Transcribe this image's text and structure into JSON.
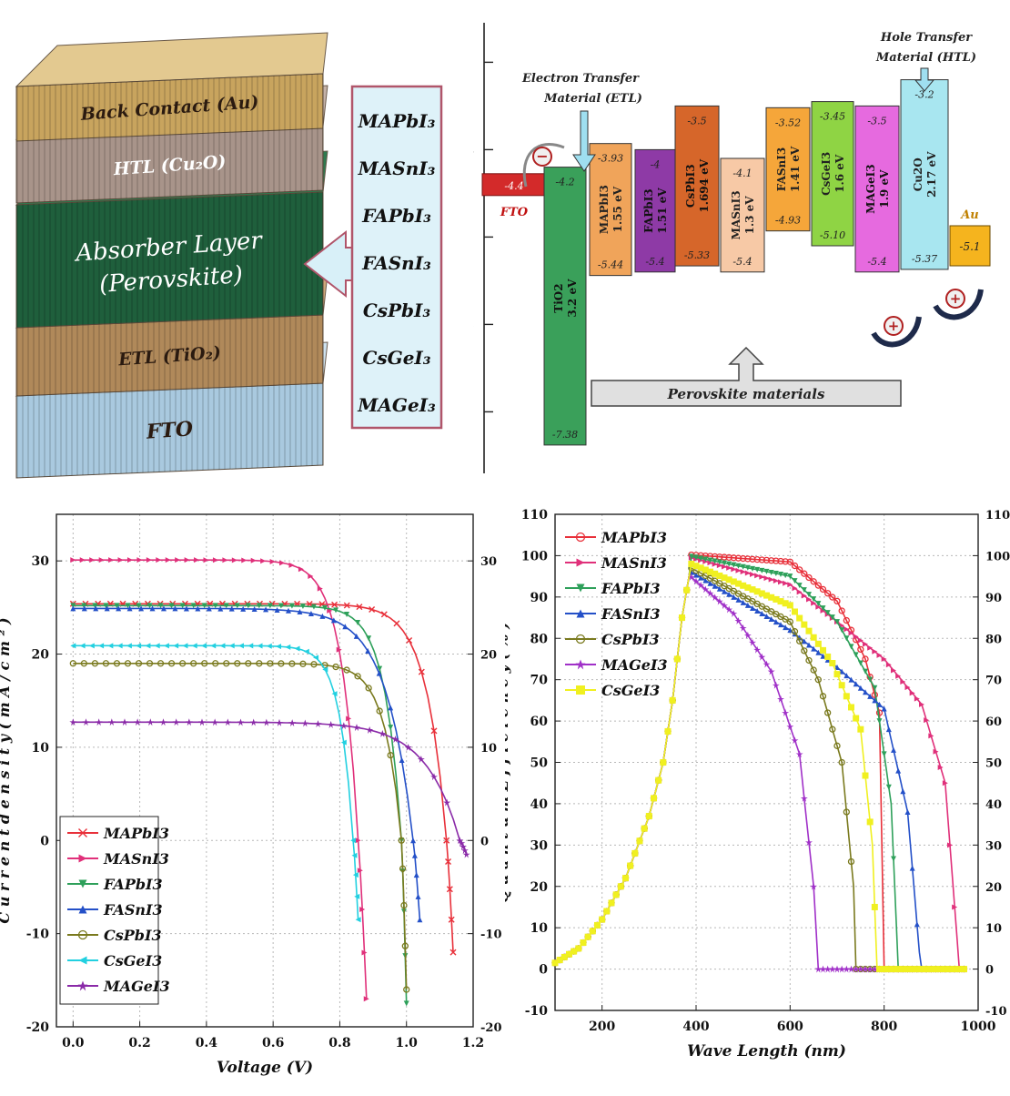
{
  "stack": {
    "layers": [
      {
        "label": "Back Contact (Au)",
        "color": "#c8a45e",
        "top_color": "#e3c990"
      },
      {
        "label": "HTL (Cu₂O)",
        "color": "#a8948a",
        "top_color": "#c4b2a8"
      },
      {
        "label": "Absorber Layer",
        "label2": "(Perovskite)",
        "color": "#1f5f3c",
        "top_color": "#2e7a4f"
      },
      {
        "label": "ETL (TiO₂)",
        "color": "#b0895a",
        "top_color": "#cfa87a"
      },
      {
        "label": "FTO",
        "color": "#a9c9df",
        "top_color": "#cde1ee"
      }
    ],
    "materials": [
      "MAPbI₃",
      "MASnI₃",
      "FAPbI₃",
      "FASnI₃",
      "CsPbI₃",
      "CsGeI₃",
      "MAGeI₃"
    ]
  },
  "band": {
    "yaxis_ticks": [
      "-3",
      "-4",
      "-5",
      "-6",
      "-7"
    ],
    "ymin": -7.6,
    "ymax": -2.6,
    "etl_label": [
      "Electron Transfer",
      "Material (ETL)"
    ],
    "htl_label": [
      "Hole Transfer",
      "Material (HTL)"
    ],
    "perovskite_label": "Perovskite materials",
    "fto": {
      "label": "FTO",
      "value_label": "-4.4",
      "value": -4.4,
      "color": "#d32a2a"
    },
    "au": {
      "label": "Au",
      "value_label": "-5.1",
      "value": -5.1,
      "color": "#f5b41e"
    },
    "electron_sign": "−",
    "hole_sign": "+",
    "blocks": [
      {
        "name": "TiO2",
        "gap": "3.2 eV",
        "top": -4.2,
        "bottom": -7.38,
        "top_label": "-4.2",
        "bottom_label": "-7.38",
        "color": "#3aa05a"
      },
      {
        "name": "MAPbI3",
        "gap": "1.55 eV",
        "top": -3.93,
        "bottom": -5.44,
        "top_label": "-3.93",
        "bottom_label": "-5.44",
        "color": "#f0a45a"
      },
      {
        "name": "FAPbI3",
        "gap": "1.51 eV",
        "top": -4.0,
        "bottom": -5.4,
        "top_label": "-4",
        "bottom_label": "-5.4",
        "color": "#8e3aa6"
      },
      {
        "name": "CsPbI3",
        "gap": "1.694 eV",
        "top": -3.5,
        "bottom": -5.33,
        "top_label": "-3.5",
        "bottom_label": "-5.33",
        "color": "#d6662a"
      },
      {
        "name": "MASnI3",
        "gap": "1.3 eV",
        "top": -4.1,
        "bottom": -5.4,
        "top_label": "-4.1",
        "bottom_label": "-5.4",
        "color": "#f7c9a6"
      },
      {
        "name": "FASnI3",
        "gap": "1.41 eV",
        "top": -3.52,
        "bottom": -4.93,
        "top_label": "-3.52",
        "bottom_label": "-4.93",
        "color": "#f5a63a"
      },
      {
        "name": "CsGeI3",
        "gap": "1.6 eV",
        "top": -3.45,
        "bottom": -5.1,
        "top_label": "-3.45",
        "bottom_label": "-5.10",
        "color": "#8fd444"
      },
      {
        "name": "MAGeI3",
        "gap": "1.9 eV",
        "top": -3.5,
        "bottom": -5.4,
        "top_label": "-3.5",
        "bottom_label": "-5.4",
        "color": "#e66adf"
      },
      {
        "name": "Cu2O",
        "gap": "2.17 eV",
        "top": -3.2,
        "bottom": -5.37,
        "top_label": "-3.2",
        "bottom_label": "-5.37",
        "color": "#a8e6f0"
      }
    ]
  },
  "chart_data": [
    {
      "type": "line",
      "title": "",
      "xlabel": "Voltage (V)",
      "ylabel": "C u r r e n t  d e n s i t y  ( m A / c m ² )",
      "xlim": [
        -0.05,
        1.2
      ],
      "ylim": [
        -20,
        35
      ],
      "xticks": [
        0.0,
        0.2,
        0.4,
        0.6,
        0.8,
        1.0,
        1.2
      ],
      "xtick_labels": [
        "0.0",
        "0.2",
        "0.4",
        "0.6",
        "0.8",
        "1.0",
        "1.2"
      ],
      "yticks": [
        -20,
        -10,
        0,
        10,
        20,
        30
      ],
      "ytick_labels": [
        "-20",
        "-10",
        "0",
        "10",
        "20",
        "30"
      ],
      "grid": true,
      "legend": "bottom-left",
      "series": [
        {
          "name": "MAPbI3",
          "color": "#e8303a",
          "marker": "x",
          "jsc": 25.4,
          "voc": 1.12,
          "end": [
            1.14,
            -12
          ],
          "knee": 0.06
        },
        {
          "name": "MASnI3",
          "color": "#e0307a",
          "marker": ">",
          "jsc": 30.1,
          "voc": 0.855,
          "end": [
            0.88,
            -17
          ],
          "knee": 0.05
        },
        {
          "name": "FAPbI3",
          "color": "#2ea05a",
          "marker": "v",
          "jsc": 25.2,
          "voc": 0.985,
          "end": [
            1.0,
            -17.5
          ],
          "knee": 0.05
        },
        {
          "name": "FASnI3",
          "color": "#2450c8",
          "marker": "^",
          "jsc": 24.9,
          "voc": 1.02,
          "end": [
            1.04,
            -8.5
          ],
          "knee": 0.08
        },
        {
          "name": "CsPbI3",
          "color": "#7a7a1e",
          "marker": "o",
          "jsc": 19.0,
          "voc": 0.985,
          "end": [
            1.0,
            -16
          ],
          "knee": 0.05
        },
        {
          "name": "CsGeI3",
          "color": "#22d0e0",
          "marker": "<",
          "jsc": 20.9,
          "voc": 0.84,
          "end": [
            0.855,
            -8.5
          ],
          "knee": 0.04
        },
        {
          "name": "MAGeI3",
          "color": "#8a2aa8",
          "marker": "*",
          "jsc": 12.7,
          "voc": 1.16,
          "end": [
            1.18,
            -1.5
          ],
          "knee": 0.1
        }
      ]
    },
    {
      "type": "line",
      "title": "",
      "xlabel": "Wave Length (nm)",
      "ylabel": "Q u a n t u m   E f f i c i e n c y  ( % )",
      "xlim": [
        100,
        1000
      ],
      "ylim": [
        -10,
        110
      ],
      "xticks": [
        200,
        400,
        600,
        800,
        1000
      ],
      "xtick_labels": [
        "200",
        "400",
        "600",
        "800",
        "1000"
      ],
      "yticks": [
        -10,
        0,
        10,
        20,
        30,
        40,
        50,
        60,
        70,
        80,
        90,
        100,
        110
      ],
      "ytick_labels": [
        "-10",
        "0",
        "10",
        "20",
        "30",
        "40",
        "50",
        "60",
        "70",
        "80",
        "90",
        "100",
        "110"
      ],
      "grid": true,
      "legend": "top-left",
      "series": [
        {
          "name": "MAPbI3",
          "color": "#e8303a",
          "marker": "o",
          "peak": 100.2,
          "cut": 800,
          "fall": [
            [
              600,
              98.5
            ],
            [
              700,
              89
            ],
            [
              760,
              75
            ],
            [
              790,
              62
            ],
            [
              800,
              0
            ]
          ]
        },
        {
          "name": "MASnI3",
          "color": "#e0307a",
          "marker": ">",
          "peak": 99.5,
          "cut": 960,
          "fall": [
            [
              600,
              93
            ],
            [
              700,
              84
            ],
            [
              800,
              75
            ],
            [
              880,
              64
            ],
            [
              930,
              45
            ],
            [
              960,
              0
            ]
          ]
        },
        {
          "name": "FAPbI3",
          "color": "#2ea05a",
          "marker": "v",
          "peak": 99.8,
          "cut": 830,
          "fall": [
            [
              600,
              95
            ],
            [
              700,
              84
            ],
            [
              780,
              68
            ],
            [
              815,
              40
            ],
            [
              830,
              0
            ]
          ]
        },
        {
          "name": "FASnI3",
          "color": "#2450c8",
          "marker": "^",
          "peak": 96.0,
          "cut": 878,
          "fall": [
            [
              600,
              82
            ],
            [
              700,
              73
            ],
            [
              800,
              63
            ],
            [
              850,
              38
            ],
            [
              878,
              0
            ]
          ]
        },
        {
          "name": "CsPbI3",
          "color": "#7a7a1e",
          "marker": "o",
          "peak": 97.0,
          "cut": 740,
          "fall": [
            [
              600,
              84
            ],
            [
              660,
              70
            ],
            [
              710,
              50
            ],
            [
              735,
              20
            ],
            [
              740,
              0
            ]
          ]
        },
        {
          "name": "MAGeI3",
          "color": "#a030c8",
          "marker": "*",
          "peak": 94.8,
          "cut": 660,
          "fall": [
            [
              480,
              86
            ],
            [
              560,
              72
            ],
            [
              620,
              52
            ],
            [
              650,
              20
            ],
            [
              660,
              0
            ]
          ]
        },
        {
          "name": "CsGeI3",
          "color": "#f0f020",
          "marker": "s",
          "peak": 98.0,
          "cut": 785,
          "fall": [
            [
              600,
              88
            ],
            [
              690,
              74
            ],
            [
              750,
              58
            ],
            [
              775,
              30
            ],
            [
              785,
              0
            ]
          ]
        }
      ],
      "rise": [
        [
          100,
          1.5
        ],
        [
          150,
          5
        ],
        [
          200,
          12
        ],
        [
          250,
          22
        ],
        [
          300,
          37
        ],
        [
          330,
          50
        ],
        [
          350,
          65
        ],
        [
          370,
          85
        ],
        [
          385,
          95
        ]
      ]
    }
  ]
}
